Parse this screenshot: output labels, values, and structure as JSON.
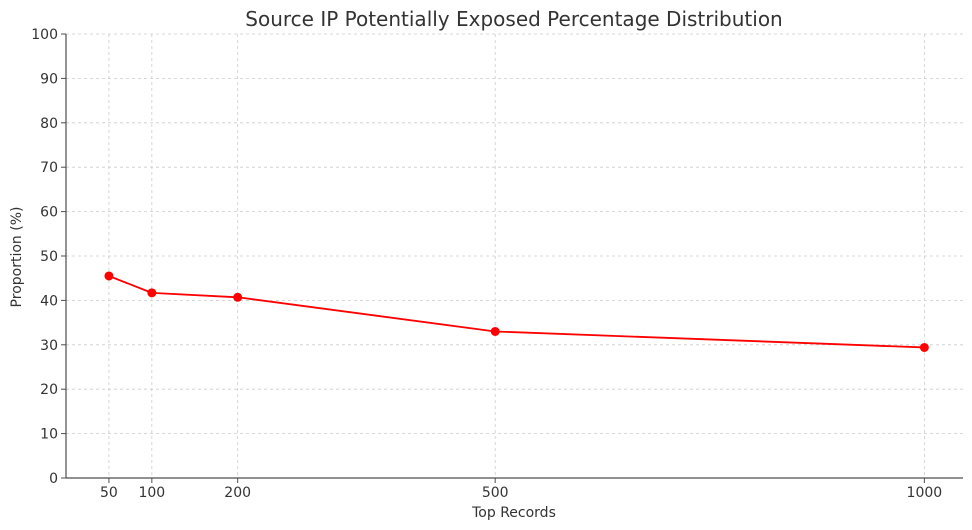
{
  "chart_data": {
    "type": "line",
    "title": "Source IP Potentially Exposed Percentage Distribution",
    "xlabel": "Top Records",
    "ylabel": "Proportion (%)",
    "x": [
      50,
      100,
      200,
      500,
      1000
    ],
    "x_tick_labels": [
      "50",
      "100",
      "200",
      "500",
      "1000"
    ],
    "series": [
      {
        "values": [
          45.5,
          41.7,
          40.7,
          33.0,
          29.4
        ],
        "color": "#ff0000",
        "marker": "circle"
      }
    ],
    "xlim": [
      0,
      1045
    ],
    "ylim": [
      0,
      100
    ],
    "y_ticks": [
      0,
      10,
      20,
      30,
      40,
      50,
      60,
      70,
      80,
      90,
      100
    ],
    "grid": true,
    "legend": "none"
  }
}
